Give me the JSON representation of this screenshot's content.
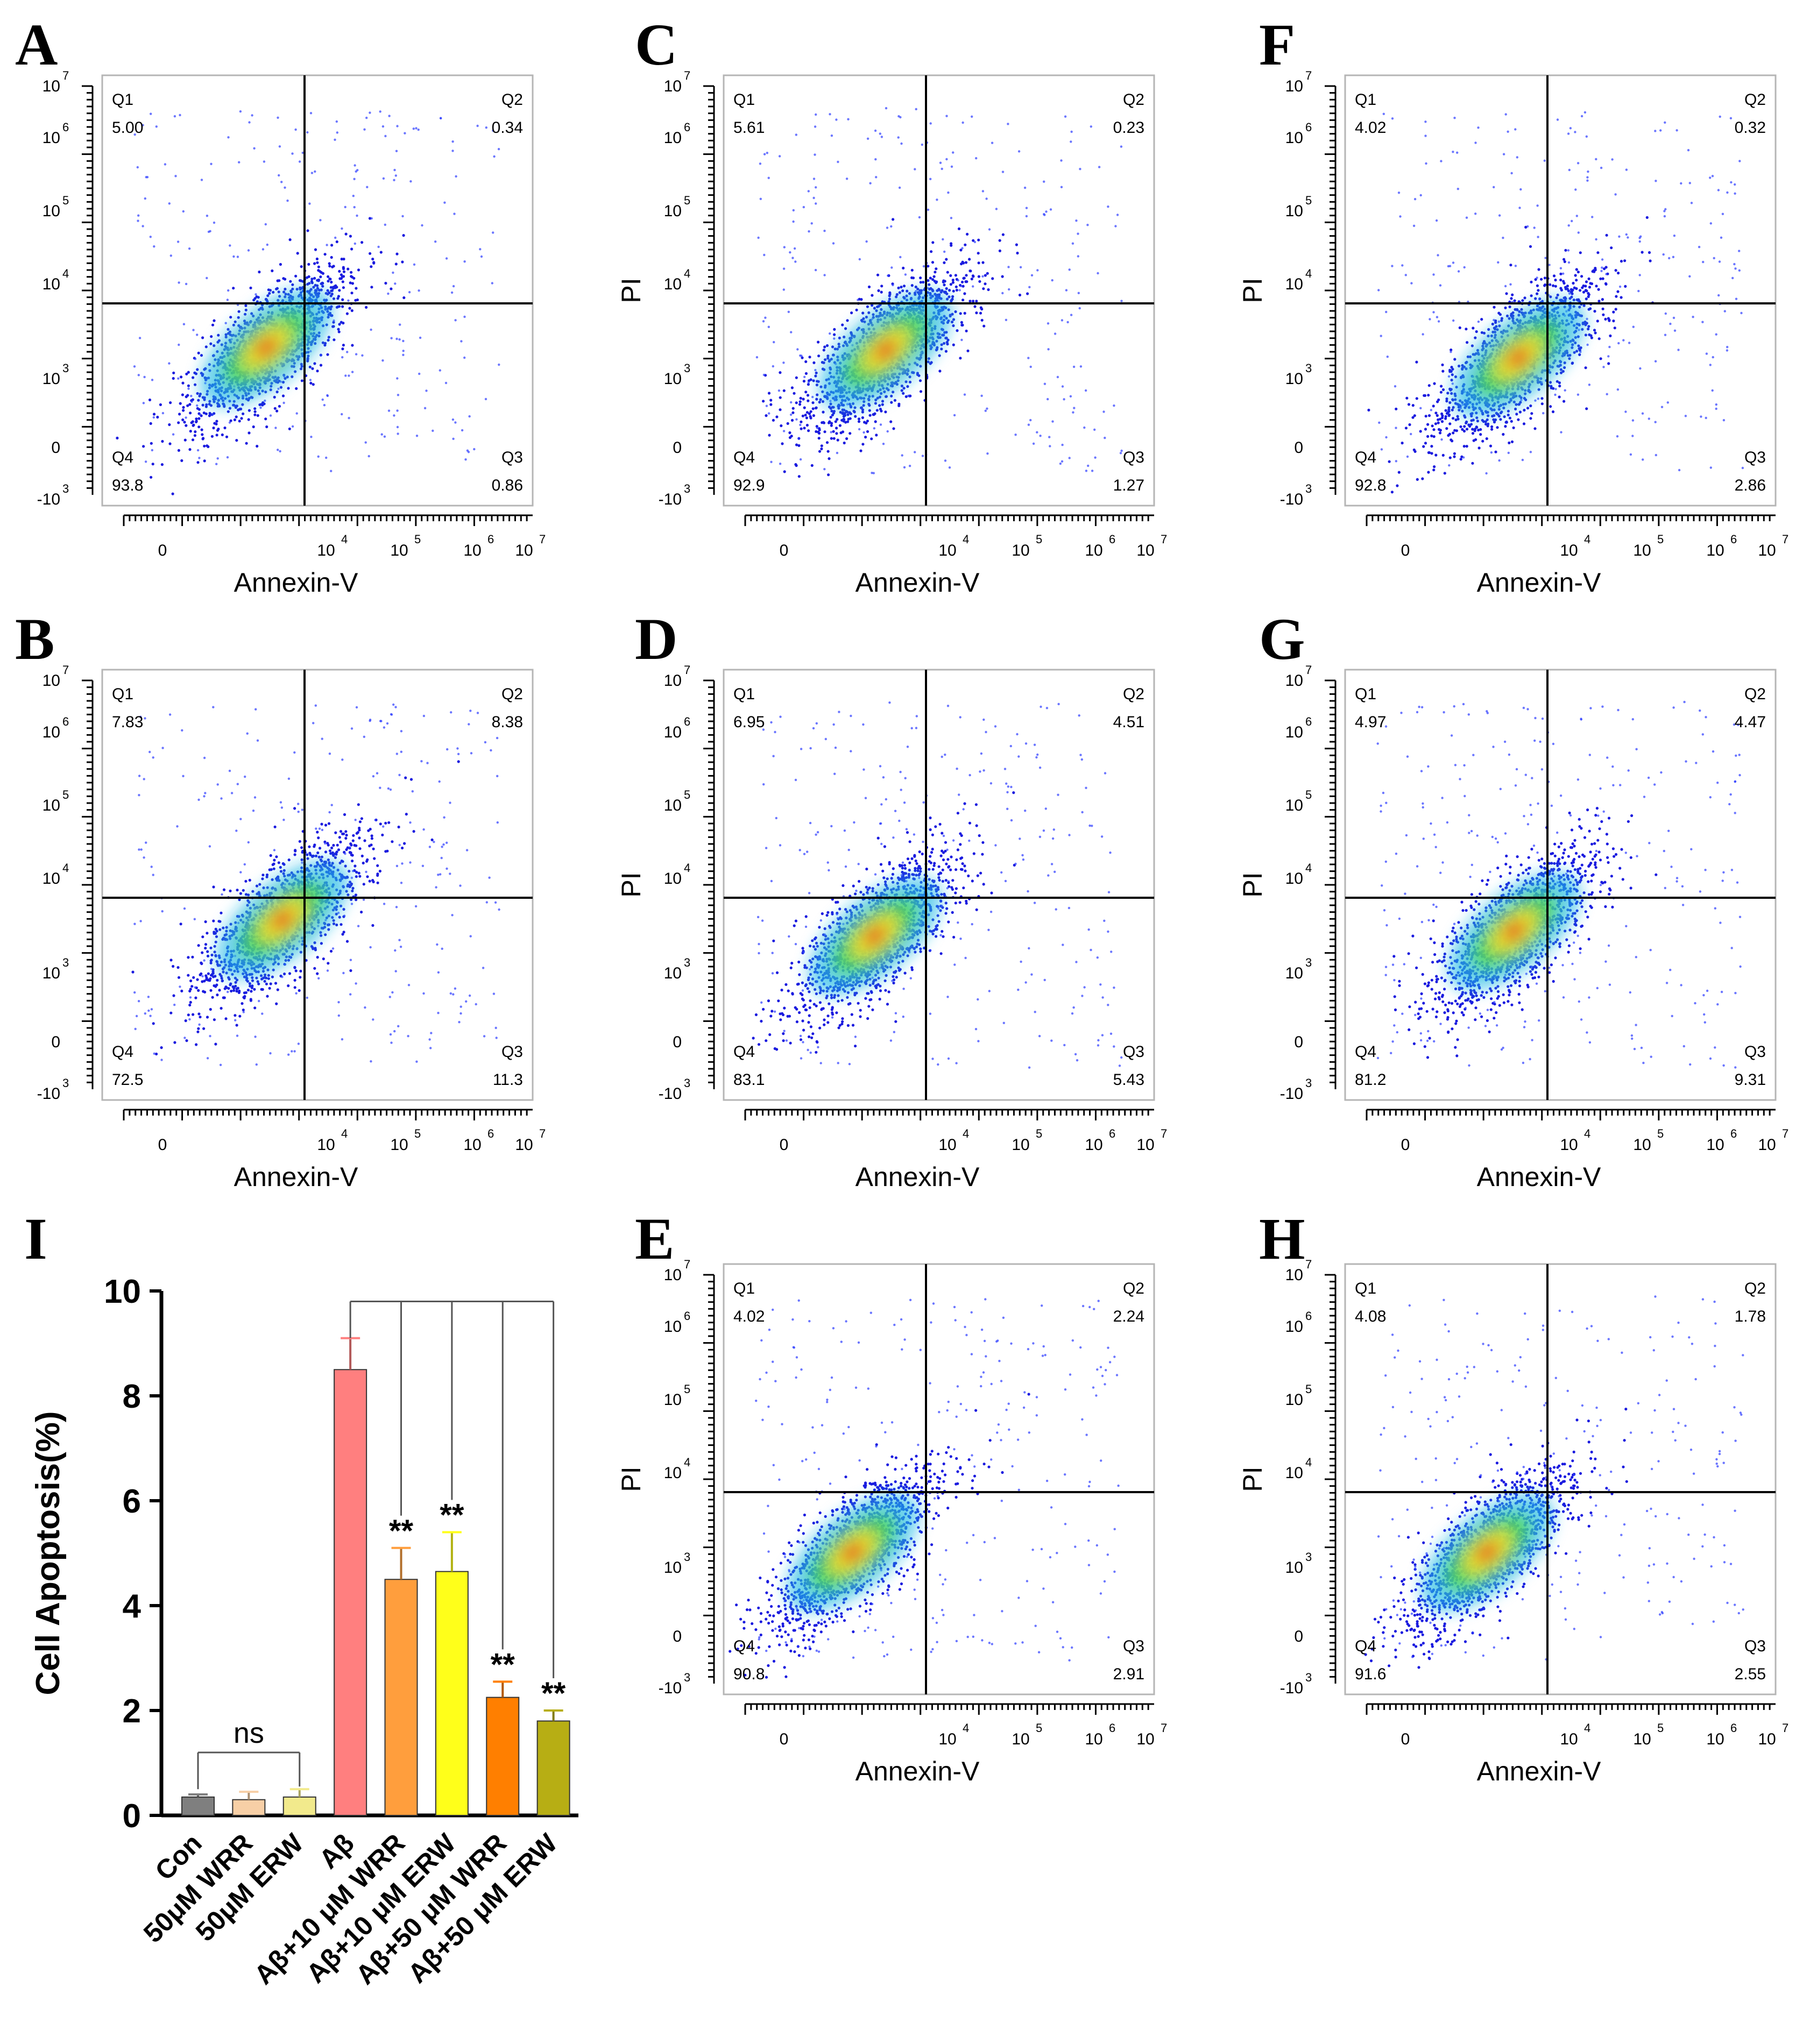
{
  "chart_data": [
    {
      "type": "scatter",
      "panel": "A",
      "xlabel": "Annexin-V",
      "ylabel": "",
      "quadrants": {
        "Q1": {
          "label": "Q1",
          "value": "5.00"
        },
        "Q2": {
          "label": "Q2",
          "value": "0.34"
        },
        "Q3": {
          "label": "Q3",
          "value": "0.86"
        },
        "Q4": {
          "label": "Q4",
          "value": "93.8"
        }
      },
      "x_ticks": [
        {
          "base": "0",
          "exp": ""
        },
        {
          "base": "10",
          "exp": "4"
        },
        {
          "base": "10",
          "exp": "5"
        },
        {
          "base": "10",
          "exp": "6"
        },
        {
          "base": "10",
          "exp": "7"
        }
      ],
      "y_ticks": [
        {
          "base": "10",
          "exp": "7"
        },
        {
          "base": "10",
          "exp": "6"
        },
        {
          "base": "10",
          "exp": "5"
        },
        {
          "base": "10",
          "exp": "4"
        },
        {
          "base": "10",
          "exp": "3"
        },
        {
          "base": "0",
          "exp": ""
        },
        {
          "base": "-10",
          "exp": "3"
        }
      ],
      "gate": {
        "x": 10000,
        "y": 10000
      },
      "population_center": {
        "x": 3000,
        "y": 2500
      }
    },
    {
      "type": "scatter",
      "panel": "B",
      "xlabel": "Annexin-V",
      "ylabel": "",
      "quadrants": {
        "Q1": {
          "label": "Q1",
          "value": "7.83"
        },
        "Q2": {
          "label": "Q2",
          "value": "8.38"
        },
        "Q3": {
          "label": "Q3",
          "value": "11.3"
        },
        "Q4": {
          "label": "Q4",
          "value": "72.5"
        }
      },
      "x_ticks": [
        {
          "base": "0",
          "exp": ""
        },
        {
          "base": "10",
          "exp": "4"
        },
        {
          "base": "10",
          "exp": "5"
        },
        {
          "base": "10",
          "exp": "6"
        },
        {
          "base": "10",
          "exp": "7"
        }
      ],
      "y_ticks": [
        {
          "base": "10",
          "exp": "7"
        },
        {
          "base": "10",
          "exp": "6"
        },
        {
          "base": "10",
          "exp": "5"
        },
        {
          "base": "10",
          "exp": "4"
        },
        {
          "base": "10",
          "exp": "3"
        },
        {
          "base": "0",
          "exp": ""
        },
        {
          "base": "-10",
          "exp": "3"
        }
      ],
      "gate": {
        "x": 10000,
        "y": 10000
      },
      "population_center": {
        "x": 5000,
        "y": 5000
      }
    },
    {
      "type": "scatter",
      "panel": "C",
      "xlabel": "Annexin-V",
      "ylabel": "PI",
      "quadrants": {
        "Q1": {
          "label": "Q1",
          "value": "5.61"
        },
        "Q2": {
          "label": "Q2",
          "value": "0.23"
        },
        "Q3": {
          "label": "Q3",
          "value": "1.27"
        },
        "Q4": {
          "label": "Q4",
          "value": "92.9"
        }
      },
      "x_ticks": [
        {
          "base": "0",
          "exp": ""
        },
        {
          "base": "10",
          "exp": "4"
        },
        {
          "base": "10",
          "exp": "5"
        },
        {
          "base": "10",
          "exp": "6"
        },
        {
          "base": "10",
          "exp": "7"
        }
      ],
      "y_ticks": [
        {
          "base": "10",
          "exp": "7"
        },
        {
          "base": "10",
          "exp": "6"
        },
        {
          "base": "10",
          "exp": "5"
        },
        {
          "base": "10",
          "exp": "4"
        },
        {
          "base": "10",
          "exp": "3"
        },
        {
          "base": "0",
          "exp": ""
        },
        {
          "base": "-10",
          "exp": "3"
        }
      ],
      "gate": {
        "x": 10000,
        "y": 10000
      },
      "population_center": {
        "x": 2800,
        "y": 2300
      }
    },
    {
      "type": "scatter",
      "panel": "D",
      "xlabel": "Annexin-V",
      "ylabel": "PI",
      "quadrants": {
        "Q1": {
          "label": "Q1",
          "value": "6.95"
        },
        "Q2": {
          "label": "Q2",
          "value": "4.51"
        },
        "Q3": {
          "label": "Q3",
          "value": "5.43"
        },
        "Q4": {
          "label": "Q4",
          "value": "83.1"
        }
      },
      "x_ticks": [
        {
          "base": "0",
          "exp": ""
        },
        {
          "base": "10",
          "exp": "4"
        },
        {
          "base": "10",
          "exp": "5"
        },
        {
          "base": "10",
          "exp": "6"
        },
        {
          "base": "10",
          "exp": "7"
        }
      ],
      "y_ticks": [
        {
          "base": "10",
          "exp": "7"
        },
        {
          "base": "10",
          "exp": "6"
        },
        {
          "base": "10",
          "exp": "5"
        },
        {
          "base": "10",
          "exp": "4"
        },
        {
          "base": "10",
          "exp": "3"
        },
        {
          "base": "0",
          "exp": ""
        },
        {
          "base": "-10",
          "exp": "3"
        }
      ],
      "gate": {
        "x": 10000,
        "y": 10000
      },
      "population_center": {
        "x": 2000,
        "y": 3000
      }
    },
    {
      "type": "scatter",
      "panel": "E",
      "xlabel": "Annexin-V",
      "ylabel": "PI",
      "quadrants": {
        "Q1": {
          "label": "Q1",
          "value": "4.02"
        },
        "Q2": {
          "label": "Q2",
          "value": "2.24"
        },
        "Q3": {
          "label": "Q3",
          "value": "2.91"
        },
        "Q4": {
          "label": "Q4",
          "value": "90.8"
        }
      },
      "x_ticks": [
        {
          "base": "0",
          "exp": ""
        },
        {
          "base": "10",
          "exp": "4"
        },
        {
          "base": "10",
          "exp": "5"
        },
        {
          "base": "10",
          "exp": "6"
        },
        {
          "base": "10",
          "exp": "7"
        }
      ],
      "y_ticks": [
        {
          "base": "10",
          "exp": "7"
        },
        {
          "base": "10",
          "exp": "6"
        },
        {
          "base": "10",
          "exp": "5"
        },
        {
          "base": "10",
          "exp": "4"
        },
        {
          "base": "10",
          "exp": "3"
        },
        {
          "base": "0",
          "exp": ""
        },
        {
          "base": "-10",
          "exp": "3"
        }
      ],
      "gate": {
        "x": 10000,
        "y": 10000
      },
      "population_center": {
        "x": 1000,
        "y": 1500
      }
    },
    {
      "type": "scatter",
      "panel": "F",
      "xlabel": "Annexin-V",
      "ylabel": "PI",
      "quadrants": {
        "Q1": {
          "label": "Q1",
          "value": "4.02"
        },
        "Q2": {
          "label": "Q2",
          "value": "0.32"
        },
        "Q3": {
          "label": "Q3",
          "value": "2.86"
        },
        "Q4": {
          "label": "Q4",
          "value": "92.8"
        }
      },
      "x_ticks": [
        {
          "base": "0",
          "exp": ""
        },
        {
          "base": "10",
          "exp": "4"
        },
        {
          "base": "10",
          "exp": "5"
        },
        {
          "base": "10",
          "exp": "6"
        },
        {
          "base": "10",
          "exp": "7"
        }
      ],
      "y_ticks": [
        {
          "base": "10",
          "exp": "7"
        },
        {
          "base": "10",
          "exp": "6"
        },
        {
          "base": "10",
          "exp": "5"
        },
        {
          "base": "10",
          "exp": "4"
        },
        {
          "base": "10",
          "exp": "3"
        },
        {
          "base": "0",
          "exp": ""
        },
        {
          "base": "-10",
          "exp": "3"
        }
      ],
      "gate": {
        "x": 10000,
        "y": 10000
      },
      "population_center": {
        "x": 4000,
        "y": 1800
      }
    },
    {
      "type": "scatter",
      "panel": "G",
      "xlabel": "Annexin-V",
      "ylabel": "PI",
      "quadrants": {
        "Q1": {
          "label": "Q1",
          "value": "4.97"
        },
        "Q2": {
          "label": "Q2",
          "value": "4.47"
        },
        "Q3": {
          "label": "Q3",
          "value": "9.31"
        },
        "Q4": {
          "label": "Q4",
          "value": "81.2"
        }
      },
      "x_ticks": [
        {
          "base": "0",
          "exp": ""
        },
        {
          "base": "10",
          "exp": "4"
        },
        {
          "base": "10",
          "exp": "5"
        },
        {
          "base": "10",
          "exp": "6"
        },
        {
          "base": "10",
          "exp": "7"
        }
      ],
      "y_ticks": [
        {
          "base": "10",
          "exp": "7"
        },
        {
          "base": "10",
          "exp": "6"
        },
        {
          "base": "10",
          "exp": "5"
        },
        {
          "base": "10",
          "exp": "4"
        },
        {
          "base": "10",
          "exp": "3"
        },
        {
          "base": "0",
          "exp": ""
        },
        {
          "base": "-10",
          "exp": "3"
        }
      ],
      "gate": {
        "x": 10000,
        "y": 10000
      },
      "population_center": {
        "x": 3500,
        "y": 3500
      }
    },
    {
      "type": "scatter",
      "panel": "H",
      "xlabel": "Annexin-V",
      "ylabel": "PI",
      "quadrants": {
        "Q1": {
          "label": "Q1",
          "value": "4.08"
        },
        "Q2": {
          "label": "Q2",
          "value": "1.78"
        },
        "Q3": {
          "label": "Q3",
          "value": "2.55"
        },
        "Q4": {
          "label": "Q4",
          "value": "91.6"
        }
      },
      "x_ticks": [
        {
          "base": "0",
          "exp": ""
        },
        {
          "base": "10",
          "exp": "4"
        },
        {
          "base": "10",
          "exp": "5"
        },
        {
          "base": "10",
          "exp": "6"
        },
        {
          "base": "10",
          "exp": "7"
        }
      ],
      "y_ticks": [
        {
          "base": "10",
          "exp": "7"
        },
        {
          "base": "10",
          "exp": "6"
        },
        {
          "base": "10",
          "exp": "5"
        },
        {
          "base": "10",
          "exp": "4"
        },
        {
          "base": "10",
          "exp": "3"
        },
        {
          "base": "0",
          "exp": ""
        },
        {
          "base": "-10",
          "exp": "3"
        }
      ],
      "gate": {
        "x": 10000,
        "y": 10000
      },
      "population_center": {
        "x": 1500,
        "y": 1500
      }
    },
    {
      "type": "bar",
      "panel": "I",
      "title": "",
      "xlabel": "",
      "ylabel": "Cell Apoptosis(%)",
      "ylim": [
        0,
        10
      ],
      "yticks": [
        "0",
        "2",
        "4",
        "6",
        "8",
        "10"
      ],
      "categories": [
        "Con",
        "50μM WRR",
        "50μM ERW",
        "Aβ",
        "Aβ+10 μM WRR",
        "Aβ+10 μM ERW",
        "Aβ+50 μM WRR",
        "Aβ+50 μM ERW"
      ],
      "values": [
        0.35,
        0.3,
        0.35,
        8.5,
        4.5,
        4.65,
        2.25,
        1.8
      ],
      "errors": [
        0.05,
        0.15,
        0.15,
        0.6,
        0.6,
        0.75,
        0.3,
        0.2
      ],
      "colors": [
        "#7f7f7f",
        "#f7cfa6",
        "#f2ea8c",
        "#ff7f7f",
        "#ff9e3d",
        "#ffff1a",
        "#ff7f00",
        "#b7ae14"
      ],
      "significance": [
        "",
        "",
        "",
        "",
        "**",
        "**",
        "**",
        "**"
      ],
      "ns_label": "ns"
    }
  ],
  "panel_labels": {
    "A": "A",
    "B": "B",
    "C": "C",
    "D": "D",
    "E": "E",
    "F": "F",
    "G": "G",
    "H": "H",
    "I": "I"
  }
}
